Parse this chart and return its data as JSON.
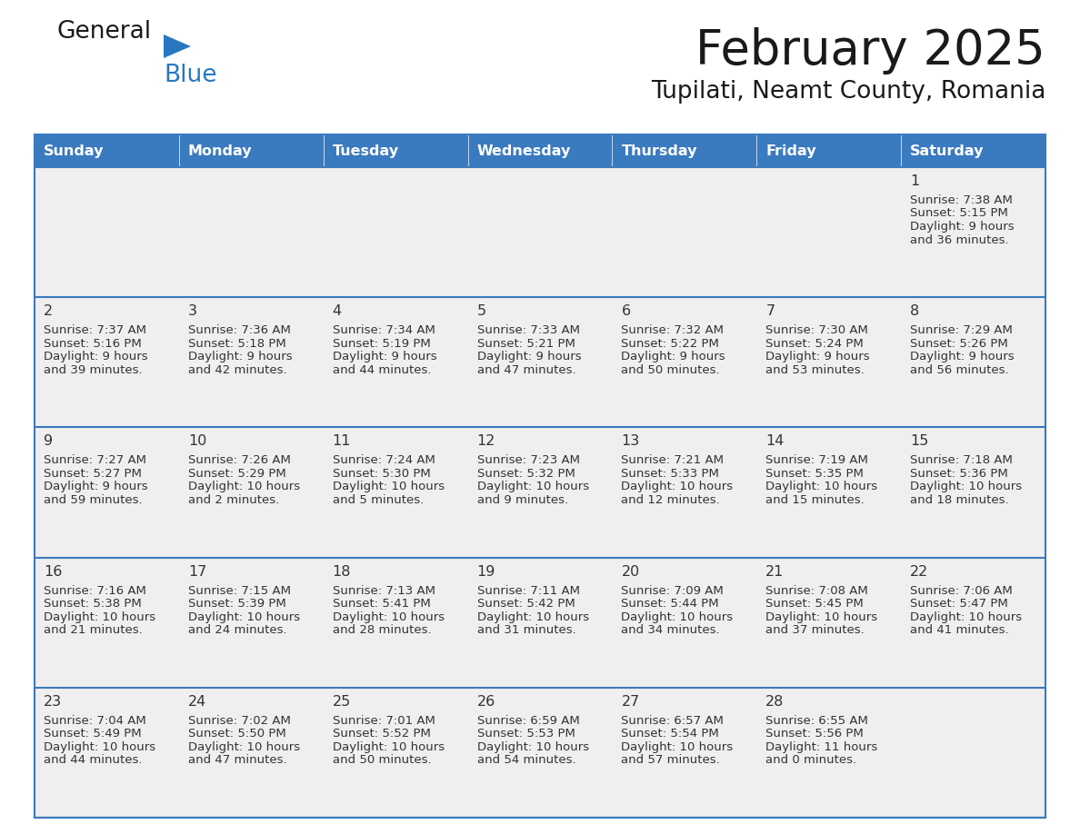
{
  "title": "February 2025",
  "subtitle": "Tupilati, Neamt County, Romania",
  "header_color": "#3a7abf",
  "header_text_color": "#ffffff",
  "days_of_week": [
    "Sunday",
    "Monday",
    "Tuesday",
    "Wednesday",
    "Thursday",
    "Friday",
    "Saturday"
  ],
  "separator_color": "#3a7abf",
  "background_color": "#ffffff",
  "cell_bg": "#efefef",
  "cell_text_color": "#333333",
  "day_num_color": "#333333",
  "logo_general_color": "#1a1a1a",
  "logo_blue_color": "#2878c0",
  "calendar_data": [
    [
      null,
      null,
      null,
      null,
      null,
      null,
      1
    ],
    [
      2,
      3,
      4,
      5,
      6,
      7,
      8
    ],
    [
      9,
      10,
      11,
      12,
      13,
      14,
      15
    ],
    [
      16,
      17,
      18,
      19,
      20,
      21,
      22
    ],
    [
      23,
      24,
      25,
      26,
      27,
      28,
      null
    ]
  ],
  "sun_times": {
    "1": {
      "sunrise": "7:38 AM",
      "sunset": "5:15 PM",
      "daylight": "9 hours",
      "daylight2": "and 36 minutes."
    },
    "2": {
      "sunrise": "7:37 AM",
      "sunset": "5:16 PM",
      "daylight": "9 hours",
      "daylight2": "and 39 minutes."
    },
    "3": {
      "sunrise": "7:36 AM",
      "sunset": "5:18 PM",
      "daylight": "9 hours",
      "daylight2": "and 42 minutes."
    },
    "4": {
      "sunrise": "7:34 AM",
      "sunset": "5:19 PM",
      "daylight": "9 hours",
      "daylight2": "and 44 minutes."
    },
    "5": {
      "sunrise": "7:33 AM",
      "sunset": "5:21 PM",
      "daylight": "9 hours",
      "daylight2": "and 47 minutes."
    },
    "6": {
      "sunrise": "7:32 AM",
      "sunset": "5:22 PM",
      "daylight": "9 hours",
      "daylight2": "and 50 minutes."
    },
    "7": {
      "sunrise": "7:30 AM",
      "sunset": "5:24 PM",
      "daylight": "9 hours",
      "daylight2": "and 53 minutes."
    },
    "8": {
      "sunrise": "7:29 AM",
      "sunset": "5:26 PM",
      "daylight": "9 hours",
      "daylight2": "and 56 minutes."
    },
    "9": {
      "sunrise": "7:27 AM",
      "sunset": "5:27 PM",
      "daylight": "9 hours",
      "daylight2": "and 59 minutes."
    },
    "10": {
      "sunrise": "7:26 AM",
      "sunset": "5:29 PM",
      "daylight": "10 hours",
      "daylight2": "and 2 minutes."
    },
    "11": {
      "sunrise": "7:24 AM",
      "sunset": "5:30 PM",
      "daylight": "10 hours",
      "daylight2": "and 5 minutes."
    },
    "12": {
      "sunrise": "7:23 AM",
      "sunset": "5:32 PM",
      "daylight": "10 hours",
      "daylight2": "and 9 minutes."
    },
    "13": {
      "sunrise": "7:21 AM",
      "sunset": "5:33 PM",
      "daylight": "10 hours",
      "daylight2": "and 12 minutes."
    },
    "14": {
      "sunrise": "7:19 AM",
      "sunset": "5:35 PM",
      "daylight": "10 hours",
      "daylight2": "and 15 minutes."
    },
    "15": {
      "sunrise": "7:18 AM",
      "sunset": "5:36 PM",
      "daylight": "10 hours",
      "daylight2": "and 18 minutes."
    },
    "16": {
      "sunrise": "7:16 AM",
      "sunset": "5:38 PM",
      "daylight": "10 hours",
      "daylight2": "and 21 minutes."
    },
    "17": {
      "sunrise": "7:15 AM",
      "sunset": "5:39 PM",
      "daylight": "10 hours",
      "daylight2": "and 24 minutes."
    },
    "18": {
      "sunrise": "7:13 AM",
      "sunset": "5:41 PM",
      "daylight": "10 hours",
      "daylight2": "and 28 minutes."
    },
    "19": {
      "sunrise": "7:11 AM",
      "sunset": "5:42 PM",
      "daylight": "10 hours",
      "daylight2": "and 31 minutes."
    },
    "20": {
      "sunrise": "7:09 AM",
      "sunset": "5:44 PM",
      "daylight": "10 hours",
      "daylight2": "and 34 minutes."
    },
    "21": {
      "sunrise": "7:08 AM",
      "sunset": "5:45 PM",
      "daylight": "10 hours",
      "daylight2": "and 37 minutes."
    },
    "22": {
      "sunrise": "7:06 AM",
      "sunset": "5:47 PM",
      "daylight": "10 hours",
      "daylight2": "and 41 minutes."
    },
    "23": {
      "sunrise": "7:04 AM",
      "sunset": "5:49 PM",
      "daylight": "10 hours",
      "daylight2": "and 44 minutes."
    },
    "24": {
      "sunrise": "7:02 AM",
      "sunset": "5:50 PM",
      "daylight": "10 hours",
      "daylight2": "and 47 minutes."
    },
    "25": {
      "sunrise": "7:01 AM",
      "sunset": "5:52 PM",
      "daylight": "10 hours",
      "daylight2": "and 50 minutes."
    },
    "26": {
      "sunrise": "6:59 AM",
      "sunset": "5:53 PM",
      "daylight": "10 hours",
      "daylight2": "and 54 minutes."
    },
    "27": {
      "sunrise": "6:57 AM",
      "sunset": "5:54 PM",
      "daylight": "10 hours",
      "daylight2": "and 57 minutes."
    },
    "28": {
      "sunrise": "6:55 AM",
      "sunset": "5:56 PM",
      "daylight": "11 hours",
      "daylight2": "and 0 minutes."
    }
  }
}
